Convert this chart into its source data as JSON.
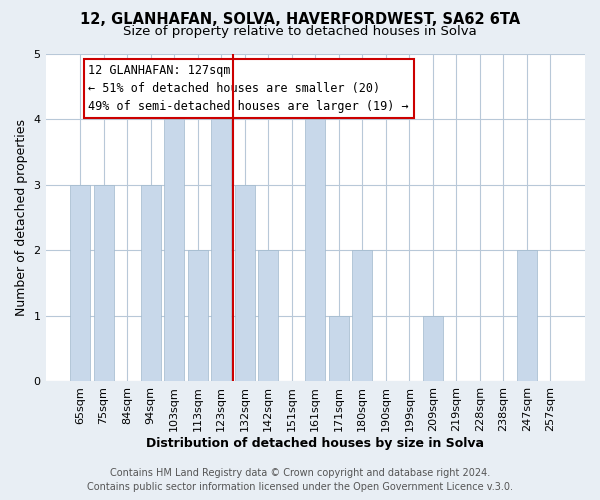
{
  "title1": "12, GLANHAFAN, SOLVA, HAVERFORDWEST, SA62 6TA",
  "title2": "Size of property relative to detached houses in Solva",
  "xlabel": "Distribution of detached houses by size in Solva",
  "ylabel": "Number of detached properties",
  "categories": [
    "65sqm",
    "75sqm",
    "84sqm",
    "94sqm",
    "103sqm",
    "113sqm",
    "123sqm",
    "132sqm",
    "142sqm",
    "151sqm",
    "161sqm",
    "171sqm",
    "180sqm",
    "190sqm",
    "199sqm",
    "209sqm",
    "219sqm",
    "228sqm",
    "238sqm",
    "247sqm",
    "257sqm"
  ],
  "values": [
    3,
    3,
    0,
    3,
    4,
    2,
    4,
    3,
    2,
    0,
    4,
    1,
    2,
    0,
    0,
    1,
    0,
    0,
    0,
    2,
    0
  ],
  "bar_color": "#c8d8ea",
  "bar_edge_color": "#a0b8cc",
  "highlight_index": 6,
  "highlight_line_color": "#cc0000",
  "ylim": [
    0,
    5
  ],
  "yticks": [
    0,
    1,
    2,
    3,
    4,
    5
  ],
  "annotation_title": "12 GLANHAFAN: 127sqm",
  "annotation_line1": "← 51% of detached houses are smaller (20)",
  "annotation_line2": "49% of semi-detached houses are larger (19) →",
  "annotation_box_color": "#ffffff",
  "annotation_box_edge": "#cc0000",
  "footer1": "Contains HM Land Registry data © Crown copyright and database right 2024.",
  "footer2": "Contains public sector information licensed under the Open Government Licence v.3.0.",
  "background_color": "#e8eef4",
  "plot_background_color": "#ffffff",
  "grid_color": "#b8c8d8",
  "title_fontsize": 10.5,
  "subtitle_fontsize": 9.5,
  "axis_label_fontsize": 9,
  "tick_fontsize": 8,
  "annotation_fontsize": 8.5,
  "footer_fontsize": 7
}
